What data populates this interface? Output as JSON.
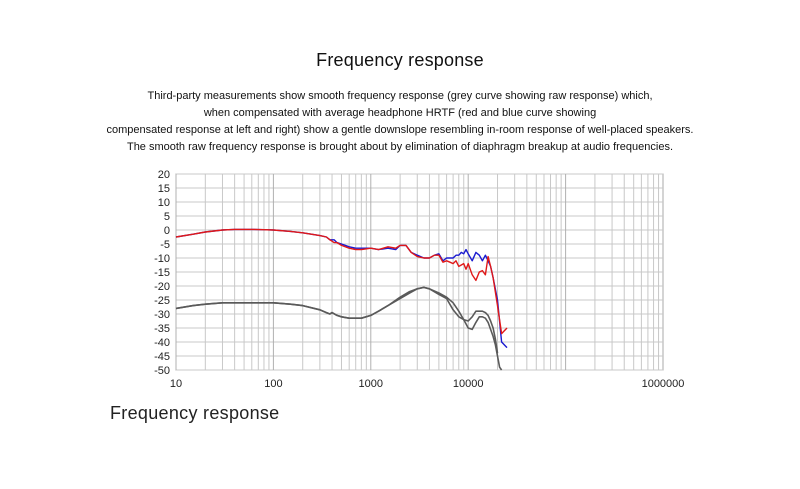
{
  "header": {
    "title": "Frequency response",
    "description_lines": [
      "Third-party measurements show smooth frequency response (grey curve showing raw response) which,",
      "when compensated with average headphone HRTF (red and blue curve showing",
      "compensated response at left and right) show a gentle downslope resembling in-room response of well-placed speakers.",
      "The smooth raw frequency response is brought about by elimination of diaphragm breakup at audio frequencies."
    ]
  },
  "caption": "Frequency response",
  "chart_data": {
    "type": "line",
    "title": "",
    "xlabel": "",
    "ylabel": "",
    "x_scale": "log",
    "xlim": [
      10,
      1000000
    ],
    "ylim": [
      -50,
      20
    ],
    "grid": true,
    "x_tick_labels": [
      "10",
      "100",
      "1000",
      "10000",
      "1000000"
    ],
    "x_tick_values": [
      10,
      100,
      1000,
      10000,
      1000000
    ],
    "y_tick_labels": [
      "20",
      "15",
      "10",
      "5",
      "0",
      "-5",
      "-10",
      "-15",
      "-20",
      "-25",
      "-30",
      "-35",
      "-40",
      "-45",
      "-50"
    ],
    "y_tick_values": [
      20,
      15,
      10,
      5,
      0,
      -5,
      -10,
      -15,
      -20,
      -25,
      -30,
      -35,
      -40,
      -45,
      -50
    ],
    "colors": {
      "blue": "#1a1ad0",
      "red": "#e01818",
      "grey": "#5a5a5a",
      "grid": "#c8c8c8"
    },
    "series": [
      {
        "color": "blue",
        "x": [
          10,
          15,
          20,
          30,
          40,
          60,
          80,
          100,
          150,
          200,
          300,
          350,
          380,
          420,
          450,
          500,
          600,
          700,
          800,
          1000,
          1200,
          1500,
          1800,
          2000,
          2300,
          2600,
          3000,
          3500,
          4000,
          4500,
          5000,
          5500,
          6000,
          6500,
          7000,
          7500,
          8000,
          8500,
          9000,
          9500,
          10000,
          11000,
          12000,
          12500,
          13000,
          14000,
          15000,
          16000,
          17000,
          18000,
          20000,
          22000,
          25000
        ],
        "y": [
          -2.5,
          -1.5,
          -0.7,
          0,
          0.2,
          0.2,
          0.1,
          0,
          -0.5,
          -1,
          -2,
          -2.5,
          -3.5,
          -3.5,
          -4.5,
          -5,
          -6,
          -6.5,
          -6.5,
          -6.5,
          -7,
          -6.5,
          -7,
          -5.5,
          -5.5,
          -8,
          -9,
          -10,
          -10,
          -9,
          -8.5,
          -11,
          -10,
          -10,
          -10,
          -9,
          -9,
          -8,
          -8.5,
          -7,
          -8.5,
          -11,
          -8,
          -8.5,
          -9,
          -11,
          -9,
          -11,
          -13,
          -17,
          -25,
          -40,
          -42
        ]
      },
      {
        "color": "red",
        "x": [
          10,
          15,
          20,
          30,
          40,
          60,
          80,
          100,
          150,
          200,
          300,
          350,
          380,
          420,
          450,
          500,
          600,
          700,
          800,
          1000,
          1200,
          1500,
          1800,
          2000,
          2300,
          2600,
          3000,
          3500,
          4000,
          4500,
          5000,
          5500,
          6000,
          6500,
          7000,
          7500,
          8000,
          8500,
          9000,
          9500,
          10000,
          11000,
          12000,
          13000,
          14000,
          15000,
          16000,
          17000,
          18000,
          20000,
          22000,
          25000
        ],
        "y": [
          -2.5,
          -1.5,
          -0.7,
          0,
          0.2,
          0.2,
          0.1,
          0,
          -0.5,
          -1,
          -2,
          -2.5,
          -3.5,
          -4.5,
          -4.5,
          -5.5,
          -6.5,
          -7,
          -7,
          -6.5,
          -7,
          -6,
          -6.5,
          -5.5,
          -5.5,
          -8,
          -9.5,
          -10,
          -10,
          -9,
          -9,
          -11.5,
          -11,
          -11.5,
          -12,
          -11,
          -13,
          -12.5,
          -12,
          -14,
          -12,
          -16,
          -18,
          -15,
          -14.5,
          -16,
          -9.5,
          -13,
          -17,
          -27,
          -37,
          -35
        ]
      },
      {
        "color": "grey",
        "x": [
          10,
          15,
          20,
          30,
          40,
          60,
          80,
          100,
          150,
          200,
          300,
          350,
          380,
          400,
          450,
          500,
          600,
          800,
          1000,
          1200,
          1500,
          2000,
          2500,
          3000,
          3500,
          4000,
          5000,
          6000,
          7000,
          8000,
          9000,
          10000,
          11000,
          12000,
          13000,
          14000,
          15000,
          16000,
          17000,
          18000,
          19000,
          20000
        ],
        "y": [
          -28,
          -27,
          -26.5,
          -26,
          -26,
          -26,
          -26,
          -26,
          -26.5,
          -27,
          -28.5,
          -29.5,
          -30,
          -29.5,
          -30.5,
          -31,
          -31.5,
          -31.5,
          -30.5,
          -29,
          -27,
          -24,
          -22,
          -21,
          -20.5,
          -21,
          -23,
          -24.5,
          -28.5,
          -31,
          -32,
          -32.5,
          -31,
          -29,
          -29,
          -29,
          -29.5,
          -30.5,
          -32.5,
          -35,
          -39,
          -44
        ]
      },
      {
        "color": "grey",
        "x": [
          10,
          15,
          20,
          30,
          40,
          60,
          80,
          100,
          150,
          200,
          300,
          350,
          380,
          400,
          450,
          500,
          600,
          800,
          1000,
          1200,
          1500,
          2000,
          2500,
          3000,
          3500,
          4000,
          5000,
          6000,
          7000,
          8000,
          9000,
          10000,
          11000,
          12000,
          13000,
          14000,
          15000,
          16000,
          17000,
          18000,
          19000,
          20000,
          21000,
          22000
        ],
        "y": [
          -28,
          -27,
          -26.5,
          -26,
          -26,
          -26,
          -26,
          -26,
          -26.5,
          -27,
          -28.5,
          -29.5,
          -30,
          -29.5,
          -30.5,
          -31,
          -31.5,
          -31.5,
          -30.5,
          -29,
          -27,
          -24.5,
          -22.5,
          -21,
          -20.5,
          -21,
          -22.5,
          -24,
          -26,
          -29,
          -32,
          -35,
          -35.5,
          -33,
          -31,
          -31,
          -31.5,
          -33,
          -35.5,
          -38,
          -41,
          -45,
          -49,
          -52
        ]
      }
    ]
  }
}
